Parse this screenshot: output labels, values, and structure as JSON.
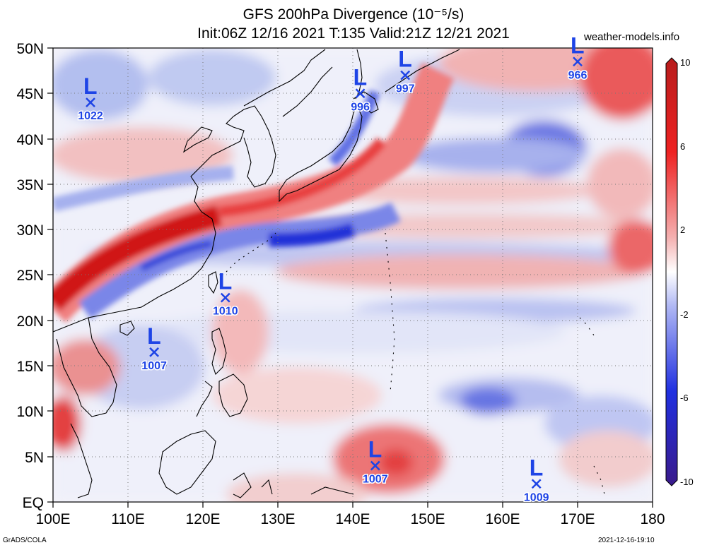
{
  "header": {
    "title_line1": "GFS 200hPa Divergence (10⁻⁵/s)",
    "title_line2": "Init:06Z 12/16 2021 T:135 Valid:21Z 12/21 2021",
    "site": "weather-models.info"
  },
  "footer": {
    "left": "GrADS/COLA",
    "right": "2021-12-16-19:10"
  },
  "map": {
    "lon_range": [
      100,
      180
    ],
    "lat_range": [
      0,
      50
    ],
    "lat_labels": [
      "EQ",
      "5N",
      "10N",
      "15N",
      "20N",
      "25N",
      "30N",
      "35N",
      "40N",
      "45N",
      "50N"
    ],
    "lon_labels": [
      "100E",
      "110E",
      "120E",
      "130E",
      "140E",
      "150E",
      "160E",
      "170E",
      "180"
    ],
    "grid": true
  },
  "colorbar": {
    "labels": [
      "10",
      "6",
      "2",
      "-2",
      "-6",
      "-10"
    ],
    "colors": {
      "max": "#b71c1c",
      "pos": "#e83030",
      "neutral": "#ffffff",
      "neg": "#2233dd",
      "min": "#3a1a8a"
    }
  },
  "lows": [
    {
      "label": "L",
      "pressure": "1022",
      "lon": 105,
      "lat": 44
    },
    {
      "label": "L",
      "pressure": "996",
      "lon": 141,
      "lat": 45
    },
    {
      "label": "L",
      "pressure": "997",
      "lon": 147,
      "lat": 47
    },
    {
      "label": "L",
      "pressure": "966",
      "lon": 170,
      "lat": 48.5
    },
    {
      "label": "L",
      "pressure": "1010",
      "lon": 123,
      "lat": 22.5
    },
    {
      "label": "L",
      "pressure": "1007",
      "lon": 113.5,
      "lat": 16.5
    },
    {
      "label": "L",
      "pressure": "1007",
      "lon": 143,
      "lat": 4
    },
    {
      "label": "L",
      "pressure": "1009",
      "lon": 164.5,
      "lat": 2
    }
  ]
}
